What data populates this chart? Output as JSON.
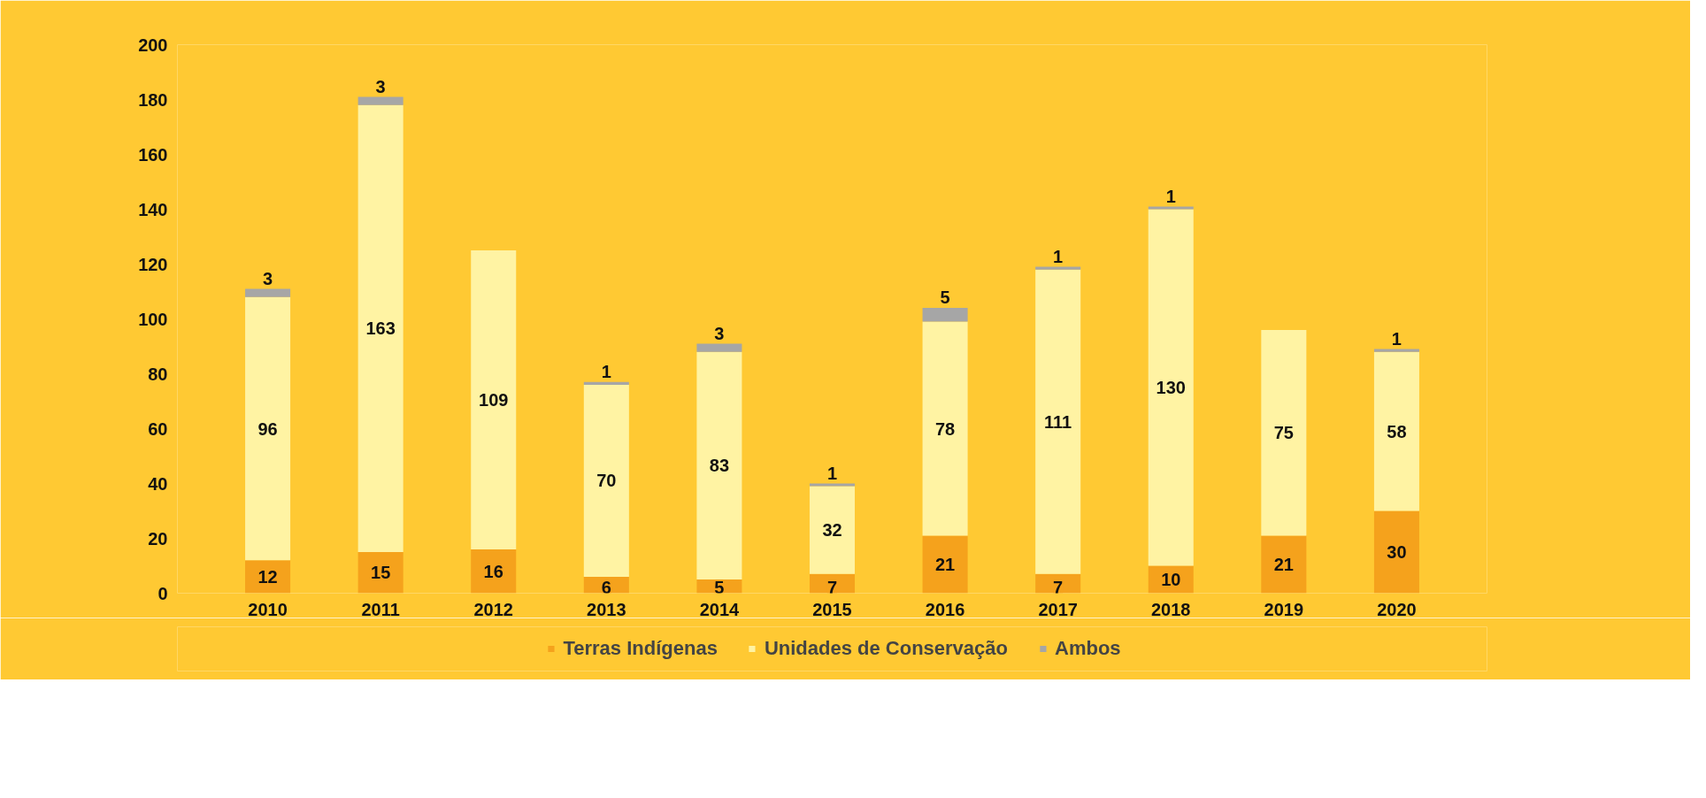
{
  "chart_data": {
    "type": "bar",
    "stacked": true,
    "categories": [
      "2010",
      "2011",
      "2012",
      "2013",
      "2014",
      "2015",
      "2016",
      "2017",
      "2018",
      "2019",
      "2020"
    ],
    "series": [
      {
        "name": "Terras Indígenas",
        "color": "#f5a21c",
        "values": [
          12,
          15,
          16,
          6,
          5,
          7,
          21,
          7,
          10,
          21,
          30
        ]
      },
      {
        "name": "Unidades de Conservação",
        "color": "#fff3a3",
        "values": [
          96,
          163,
          109,
          70,
          83,
          32,
          78,
          111,
          130,
          75,
          58
        ]
      },
      {
        "name": "Ambos",
        "color": "#a6a6a6",
        "values": [
          3,
          3,
          null,
          1,
          3,
          1,
          5,
          1,
          1,
          null,
          1
        ]
      }
    ],
    "ylim": [
      0,
      200
    ],
    "yticks": [
      0,
      20,
      40,
      60,
      80,
      100,
      120,
      140,
      160,
      180,
      200
    ],
    "grid": false,
    "legend": "bottom",
    "data_labels": true
  }
}
